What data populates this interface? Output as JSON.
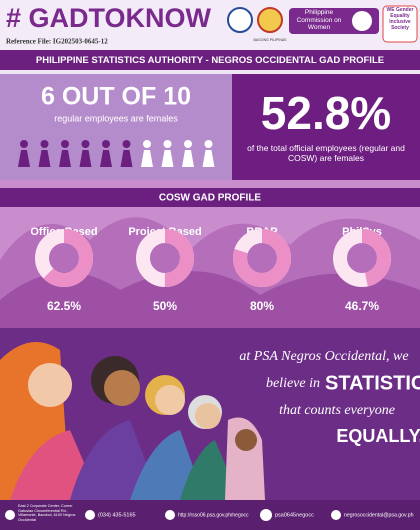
{
  "header": {
    "title": "# GADTOKNOW",
    "reference": "Reference File: IG202503-0645-12",
    "logo_bagong": "BAGONG PILIPINAS",
    "logo_pcw": "Philippine Commission on Women",
    "logo_we": "WE Gender Equality Inclusive Society"
  },
  "banner": "PHILIPPINE STATISTICS AUTHORITY - NEGROS OCCIDENTAL GAD PROFILE",
  "stats": {
    "ratio": "6 OUT OF 10",
    "ratio_caption": "regular employees are females",
    "percent": "52.8%",
    "percent_caption": "of the total official employees (regular and COSW) are females"
  },
  "cosw": {
    "title": "COSW GAD PROFILE",
    "items": [
      {
        "label": "Office Based",
        "value": 62.5,
        "value_label": "62.5%"
      },
      {
        "label": "Project Based",
        "value": 50,
        "value_label": "50%"
      },
      {
        "label": "BRAP",
        "value": 80,
        "value_label": "80%"
      },
      {
        "label": "PhilSys",
        "value": 46.7,
        "value_label": "46.7%"
      }
    ]
  },
  "message": {
    "part1": "at PSA Negros Occidental, we",
    "part2": "believe in",
    "part3": "STATISTICS",
    "part4": "that counts everyone",
    "part5": "EQUALLY."
  },
  "footer": {
    "address": "East 2 Corporate Center, Corner Gatuslao Circumferential Rd., Villamonte, Bacolod, 6100 Negros Occidental",
    "phone": "(034) 435-5165",
    "website": "http://rsso06.psa.gov.ph/negocc",
    "facebook": "psa0645negocc",
    "email": "negrosoccidental@psa.gov.ph"
  }
}
